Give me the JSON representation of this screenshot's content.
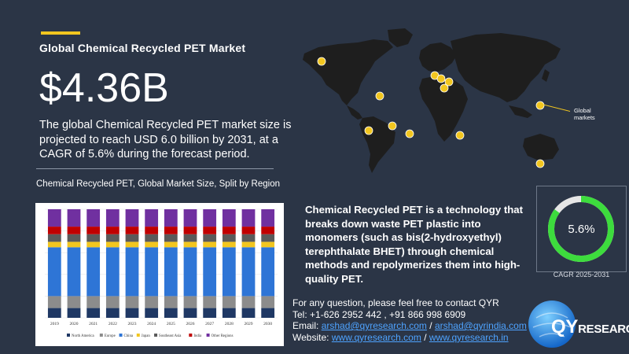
{
  "header": {
    "title": "Global Chemical Recycled PET Market",
    "market_size": "$4.36B",
    "description": "The global Chemical Recycled PET market size is projected to reach USD 6.0 billion by 2031, at a CAGR of 5.6% during the forecast period."
  },
  "chart_caption": "Chemical Recycled PET, Global Market Size, Split by Region",
  "chart_data": {
    "type": "bar",
    "stacked": true,
    "normalized_percent": true,
    "categories": [
      "2019",
      "2020",
      "2021",
      "2022",
      "2023",
      "2024",
      "2025",
      "2026",
      "2027",
      "2028",
      "2029",
      "2030"
    ],
    "series": [
      {
        "name": "North America",
        "color": "#1f3864",
        "values": [
          9,
          9,
          9,
          9,
          9,
          9,
          9,
          9,
          9,
          9,
          9,
          9
        ]
      },
      {
        "name": "Europe",
        "color": "#8c8c8c",
        "values": [
          11,
          11,
          11,
          11,
          11,
          11,
          11,
          11,
          11,
          11,
          11,
          11
        ]
      },
      {
        "name": "China",
        "color": "#2e75d6",
        "values": [
          45,
          45,
          45,
          45,
          45,
          45,
          45,
          45,
          45,
          45,
          45,
          45
        ]
      },
      {
        "name": "Japan",
        "color": "#f2c61f",
        "values": [
          5,
          5,
          5,
          5,
          5,
          5,
          5,
          5,
          5,
          5,
          5,
          5
        ]
      },
      {
        "name": "Southeast Asia",
        "color": "#5a5a5a",
        "values": [
          7,
          7,
          7,
          7,
          7,
          7,
          7,
          7,
          7,
          7,
          7,
          7
        ]
      },
      {
        "name": "India",
        "color": "#c00000",
        "values": [
          7,
          7,
          7,
          7,
          7,
          7,
          7,
          7,
          7,
          7,
          7,
          7
        ]
      },
      {
        "name": "Other Regions",
        "color": "#7030a0",
        "values": [
          16,
          16,
          16,
          16,
          16,
          16,
          16,
          16,
          16,
          16,
          16,
          16
        ]
      }
    ],
    "ylim": [
      0,
      100
    ],
    "grid": true,
    "legend_position": "bottom"
  },
  "info_text": "Chemical Recycled PET is a technology that breaks down waste PET plastic into monomers (such as bis(2-hydroxyethyl) terephthalate BHET) through chemical methods and repolymerizes them into high-quality PET.",
  "map": {
    "legend_label": "Global markets",
    "marker_color": "#f2c61f",
    "land_color": "#1e1e1e"
  },
  "cagr": {
    "value": "5.6%",
    "label": "CAGR 2025-2031",
    "fraction": 0.85,
    "ring_color": "#3ddc3d"
  },
  "contact": {
    "line1": "For any question, please feel free to contact QYR",
    "tel_label": "Tel: ",
    "tel": "+1-626 2952 442 , +91 866 998 6909",
    "email_label": "Email: ",
    "email1": "arshad@qyresearch.com",
    "email_sep": " / ",
    "email2": "arshad@qyrindia.com",
    "website_label": "Website: ",
    "web1": "www.qyresearch.com",
    "web_sep": " / ",
    "web2": "www.qyresearch.in"
  },
  "logo": {
    "text_big": "QY",
    "text_small": "RESEARCH"
  }
}
